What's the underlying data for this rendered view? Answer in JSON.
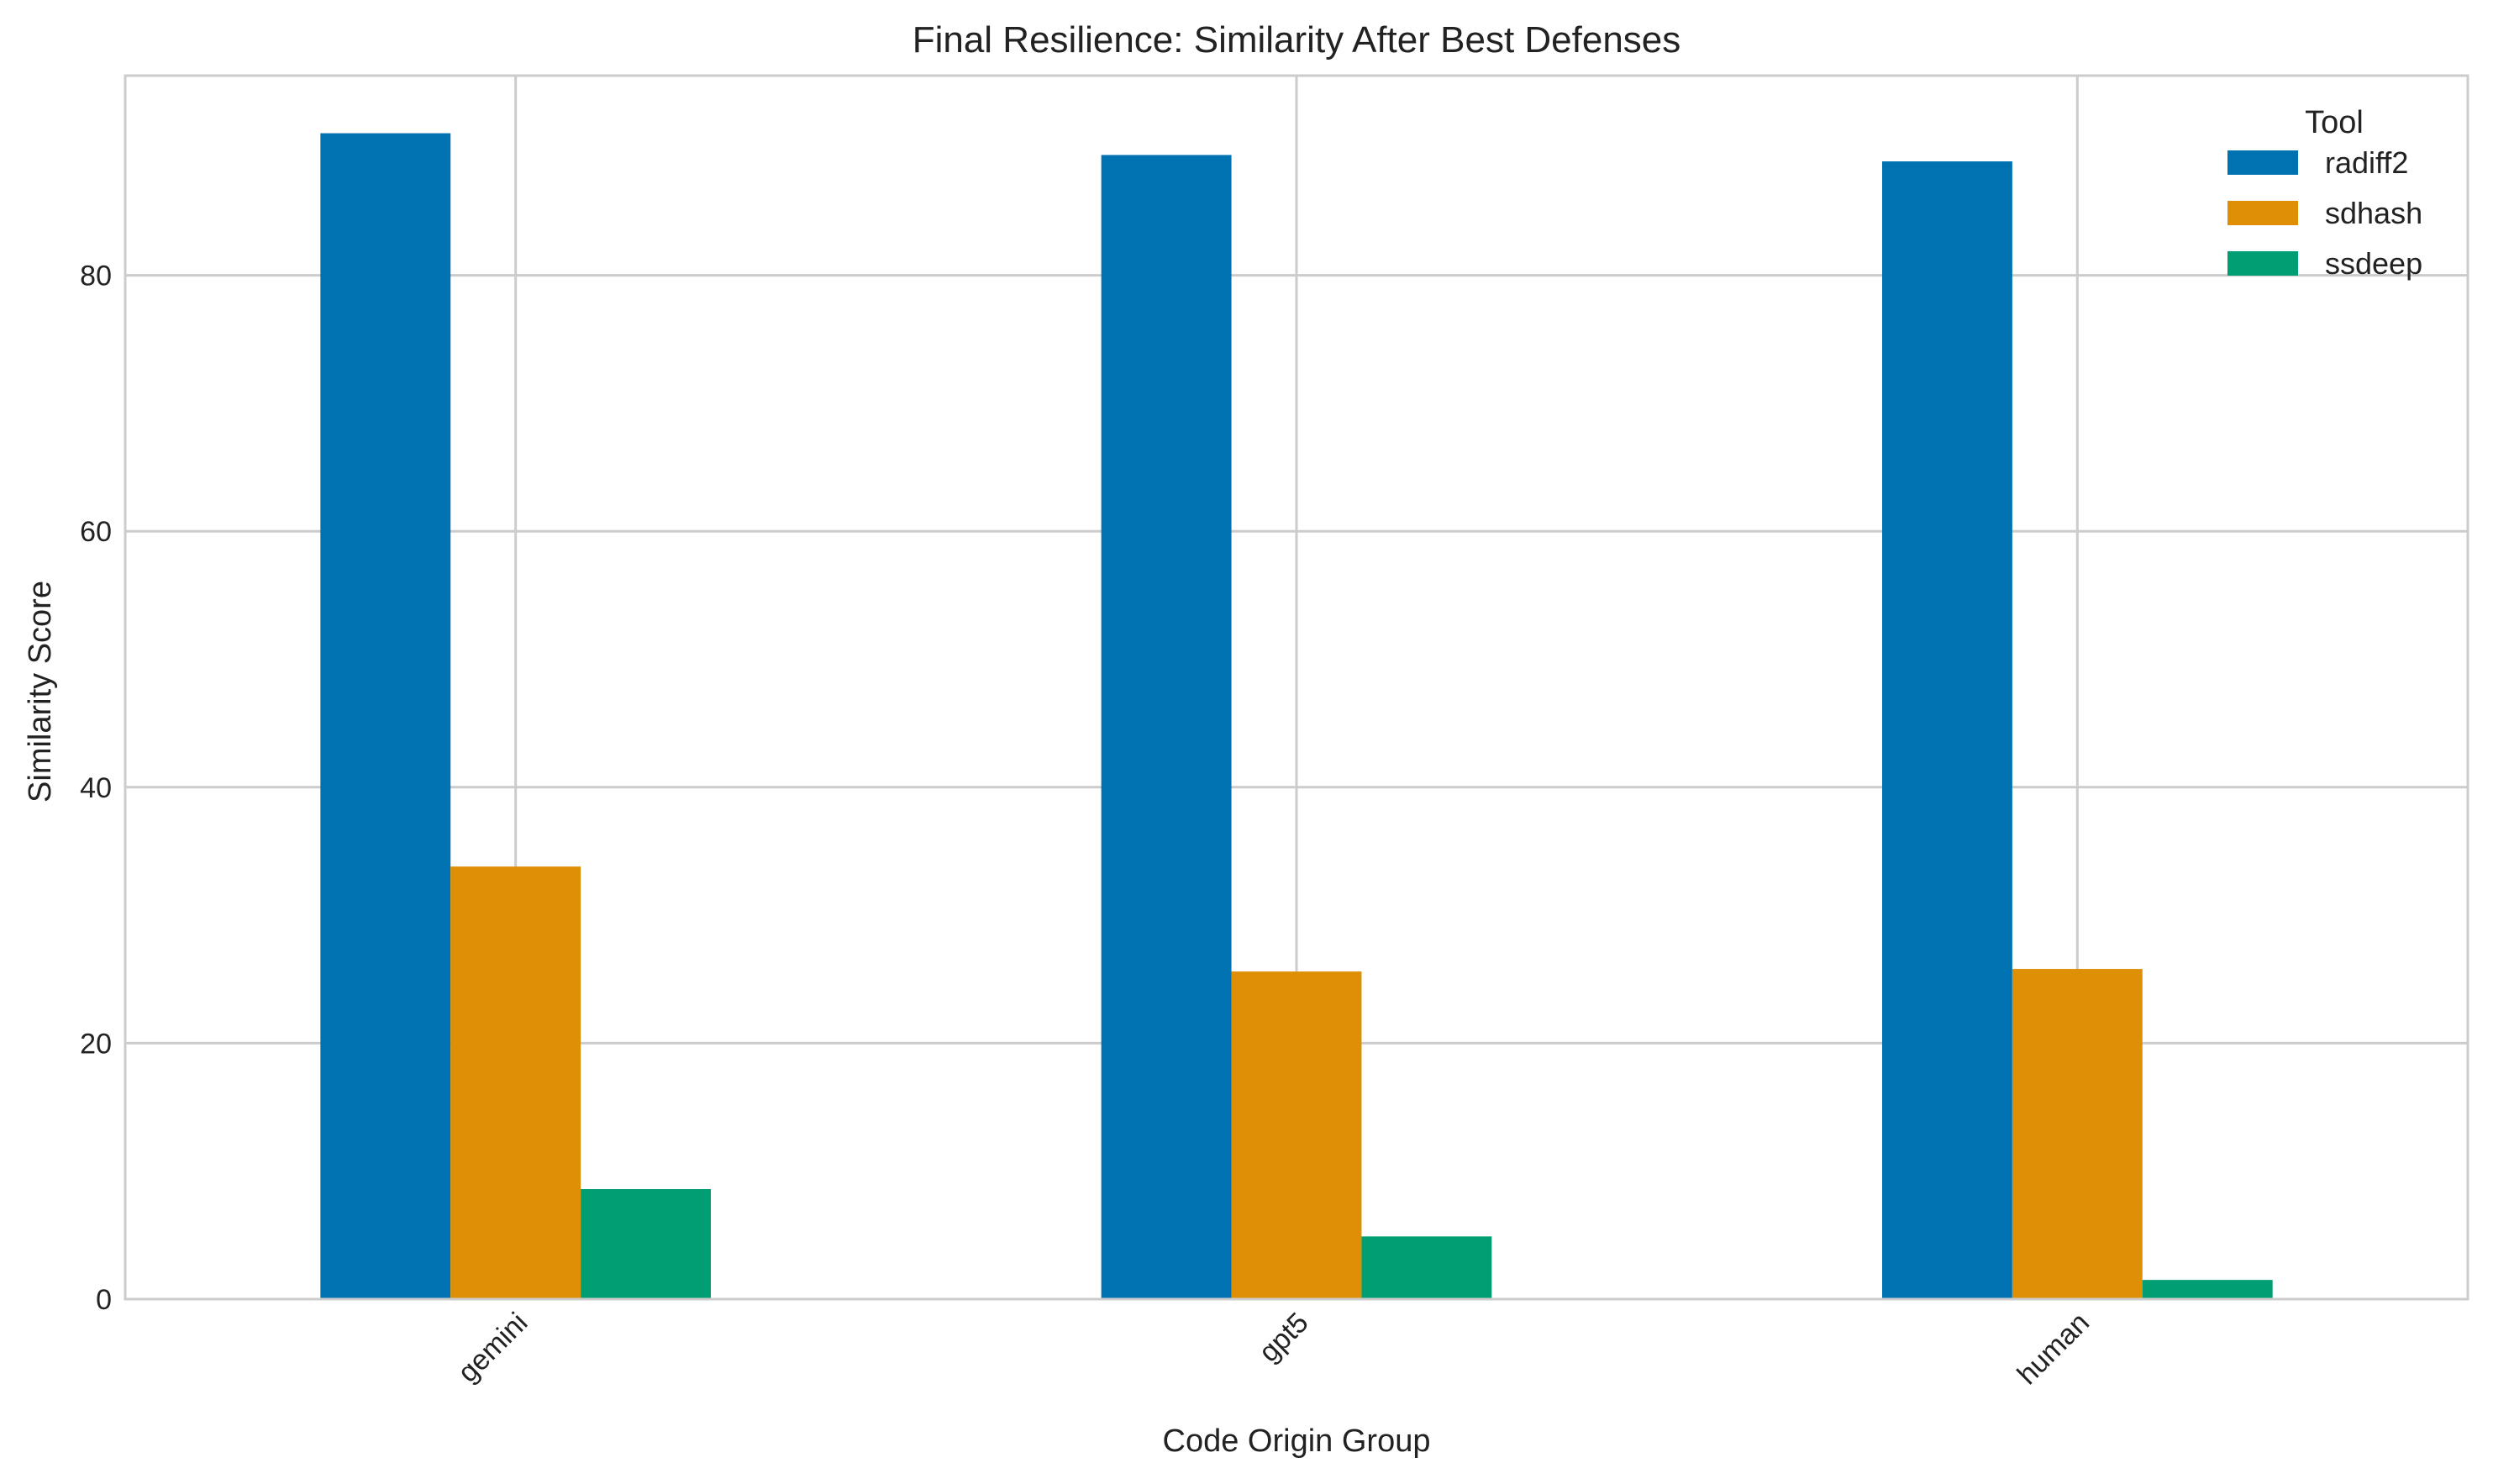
{
  "chart_data": {
    "type": "bar",
    "title": "Final Resilience: Similarity After Best Defenses",
    "xlabel": "Code Origin Group",
    "ylabel": "Similarity Score",
    "categories": [
      "gemini",
      "gpt5",
      "human"
    ],
    "series": [
      {
        "name": "radiff2",
        "color": "#0072b2",
        "values": [
          91.1,
          89.4,
          88.9
        ]
      },
      {
        "name": "sdhash",
        "color": "#de8f05",
        "values": [
          33.8,
          25.6,
          25.8
        ]
      },
      {
        "name": "ssdeep",
        "color": "#029e73",
        "values": [
          8.6,
          4.9,
          1.5
        ]
      }
    ],
    "ylim": [
      0,
      95.6
    ],
    "yticks": [
      0,
      20,
      40,
      60,
      80
    ],
    "grid": true,
    "legend": {
      "title": "Tool",
      "placement": "top-right"
    }
  }
}
